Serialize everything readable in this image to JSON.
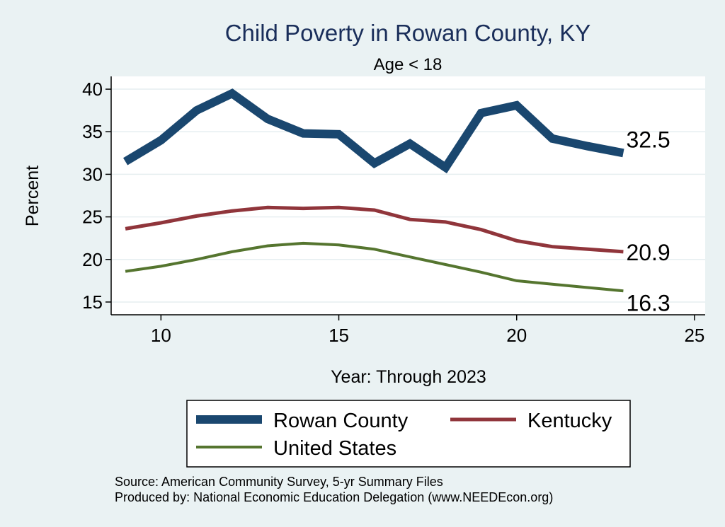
{
  "chart_data": {
    "type": "line",
    "title": "Child Poverty in Rowan County, KY",
    "subtitle": "Age < 18",
    "xlabel": "Year: Through 2023",
    "ylabel": "Percent",
    "xlim": [
      8.6,
      25.3
    ],
    "ylim": [
      13.5,
      41.5
    ],
    "x_ticks": [
      10,
      15,
      20,
      25
    ],
    "y_ticks": [
      15,
      20,
      25,
      30,
      35,
      40
    ],
    "grid": true,
    "legend_position": "bottom",
    "x": [
      9,
      10,
      11,
      12,
      13,
      14,
      15,
      16,
      17,
      18,
      19,
      20,
      21,
      22,
      23
    ],
    "series": [
      {
        "name": "Rowan County",
        "color": "#1a476f",
        "values": [
          31.5,
          34.0,
          37.5,
          39.5,
          36.5,
          34.8,
          34.7,
          31.3,
          33.6,
          30.8,
          37.2,
          38.1,
          34.2,
          33.3,
          32.5
        ],
        "end_label": "32.5"
      },
      {
        "name": "Kentucky",
        "color": "#90353b",
        "values": [
          23.6,
          24.3,
          25.1,
          25.7,
          26.1,
          26.0,
          26.1,
          25.8,
          24.7,
          24.4,
          23.5,
          22.2,
          21.5,
          21.2,
          20.9
        ],
        "end_label": "20.9"
      },
      {
        "name": "United States",
        "color": "#55752f",
        "values": [
          18.6,
          19.2,
          20.0,
          20.9,
          21.6,
          21.9,
          21.7,
          21.2,
          20.3,
          19.4,
          18.5,
          17.5,
          17.1,
          16.7,
          16.3
        ],
        "end_label": "16.3"
      }
    ],
    "footnotes": [
      "Source: American Community Survey, 5-yr Summary Files",
      "Produced by: National Economic Education Delegation (www.NEEDEcon.org)"
    ]
  }
}
